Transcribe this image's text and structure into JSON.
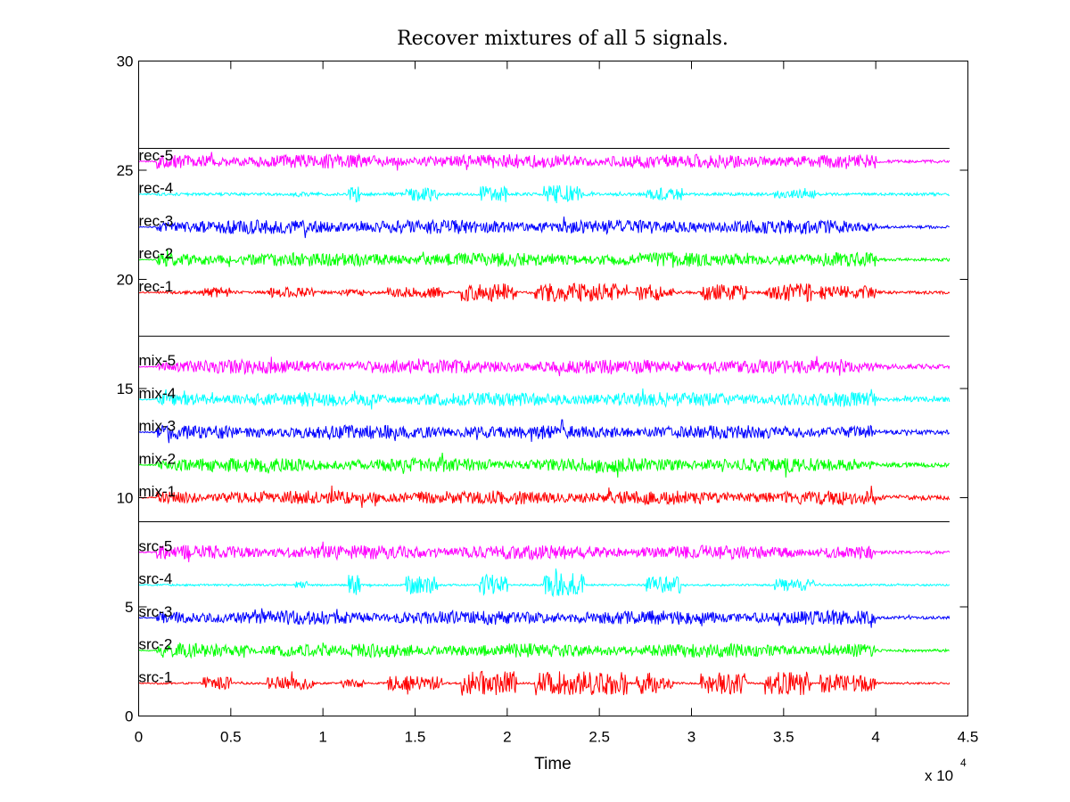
{
  "chart_data": {
    "type": "line",
    "title": "Recover mixtures of all 5 signals.",
    "xlabel": "Time",
    "ylabel": "",
    "x_multiplier": "x 10",
    "x_multiplier_exp": "4",
    "xlim": [
      0,
      45000
    ],
    "ylim": [
      0,
      30
    ],
    "x_ticks": [
      0,
      5000,
      10000,
      15000,
      20000,
      25000,
      30000,
      35000,
      40000,
      45000
    ],
    "x_tick_labels": [
      "0",
      "0.5",
      "1",
      "1.5",
      "2",
      "2.5",
      "3",
      "3.5",
      "4",
      "4.5"
    ],
    "y_ticks": [
      0,
      5,
      10,
      15,
      20,
      25,
      30
    ],
    "y_tick_labels": [
      "0",
      "5",
      "10",
      "15",
      "20",
      "25",
      "30"
    ],
    "signal_length": 44000,
    "separators": [
      8.9,
      17.4,
      26.0
    ],
    "grid": false,
    "colors": [
      "#ff0000",
      "#00ff00",
      "#0000ff",
      "#00ffff",
      "#ff00ff"
    ],
    "series": [
      {
        "name": "src-1",
        "offset": 1.5,
        "color": "#ff0000"
      },
      {
        "name": "src-2",
        "offset": 3.0,
        "color": "#00ff00"
      },
      {
        "name": "src-3",
        "offset": 4.5,
        "color": "#0000ff"
      },
      {
        "name": "src-4",
        "offset": 6.0,
        "color": "#00ffff"
      },
      {
        "name": "src-5",
        "offset": 7.5,
        "color": "#ff00ff"
      },
      {
        "name": "mix-1",
        "offset": 10.0,
        "color": "#ff0000"
      },
      {
        "name": "mix-2",
        "offset": 11.5,
        "color": "#00ff00"
      },
      {
        "name": "mix-3",
        "offset": 13.0,
        "color": "#0000ff"
      },
      {
        "name": "mix-4",
        "offset": 14.5,
        "color": "#00ffff"
      },
      {
        "name": "mix-5",
        "offset": 16.0,
        "color": "#ff00ff"
      },
      {
        "name": "rec-1",
        "offset": 19.4,
        "color": "#ff0000"
      },
      {
        "name": "rec-2",
        "offset": 20.9,
        "color": "#00ff00"
      },
      {
        "name": "rec-3",
        "offset": 22.4,
        "color": "#0000ff"
      },
      {
        "name": "rec-4",
        "offset": 23.9,
        "color": "#00ffff"
      },
      {
        "name": "rec-5",
        "offset": 25.4,
        "color": "#ff00ff"
      }
    ]
  }
}
